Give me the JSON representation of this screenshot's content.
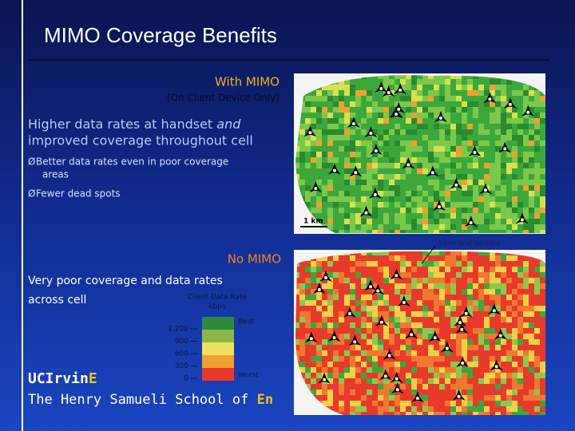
{
  "title": "MIMO Coverage Benefits",
  "with_mimo": {
    "heading": "With MIMO",
    "subheading": "(On Client Device Only)",
    "scale_label": "1 km"
  },
  "benefits": {
    "line_1": "Higher data rates at handset ",
    "emphasis": "and",
    "line_2": "improved coverage throughout cell",
    "bullets": [
      "Better data rates even in poor coverage",
      "areas",
      "Fewer dead spots"
    ]
  },
  "callout": "Sites and sectors",
  "no_mimo": {
    "heading": "No MIMO",
    "line_1": "Very poor coverage and data rates",
    "line_2": "across cell"
  },
  "legend": {
    "title": "Client Data Rate",
    "unit": "kbps",
    "ticks": [
      "1,200",
      "900",
      "600",
      "300",
      "0"
    ],
    "best": "Best",
    "worst": "Worst"
  },
  "footer": {
    "brand": "UCIrvin",
    "brand_accent": "E",
    "school": "The Henry Samueli School of ",
    "school_accent": "En"
  }
}
